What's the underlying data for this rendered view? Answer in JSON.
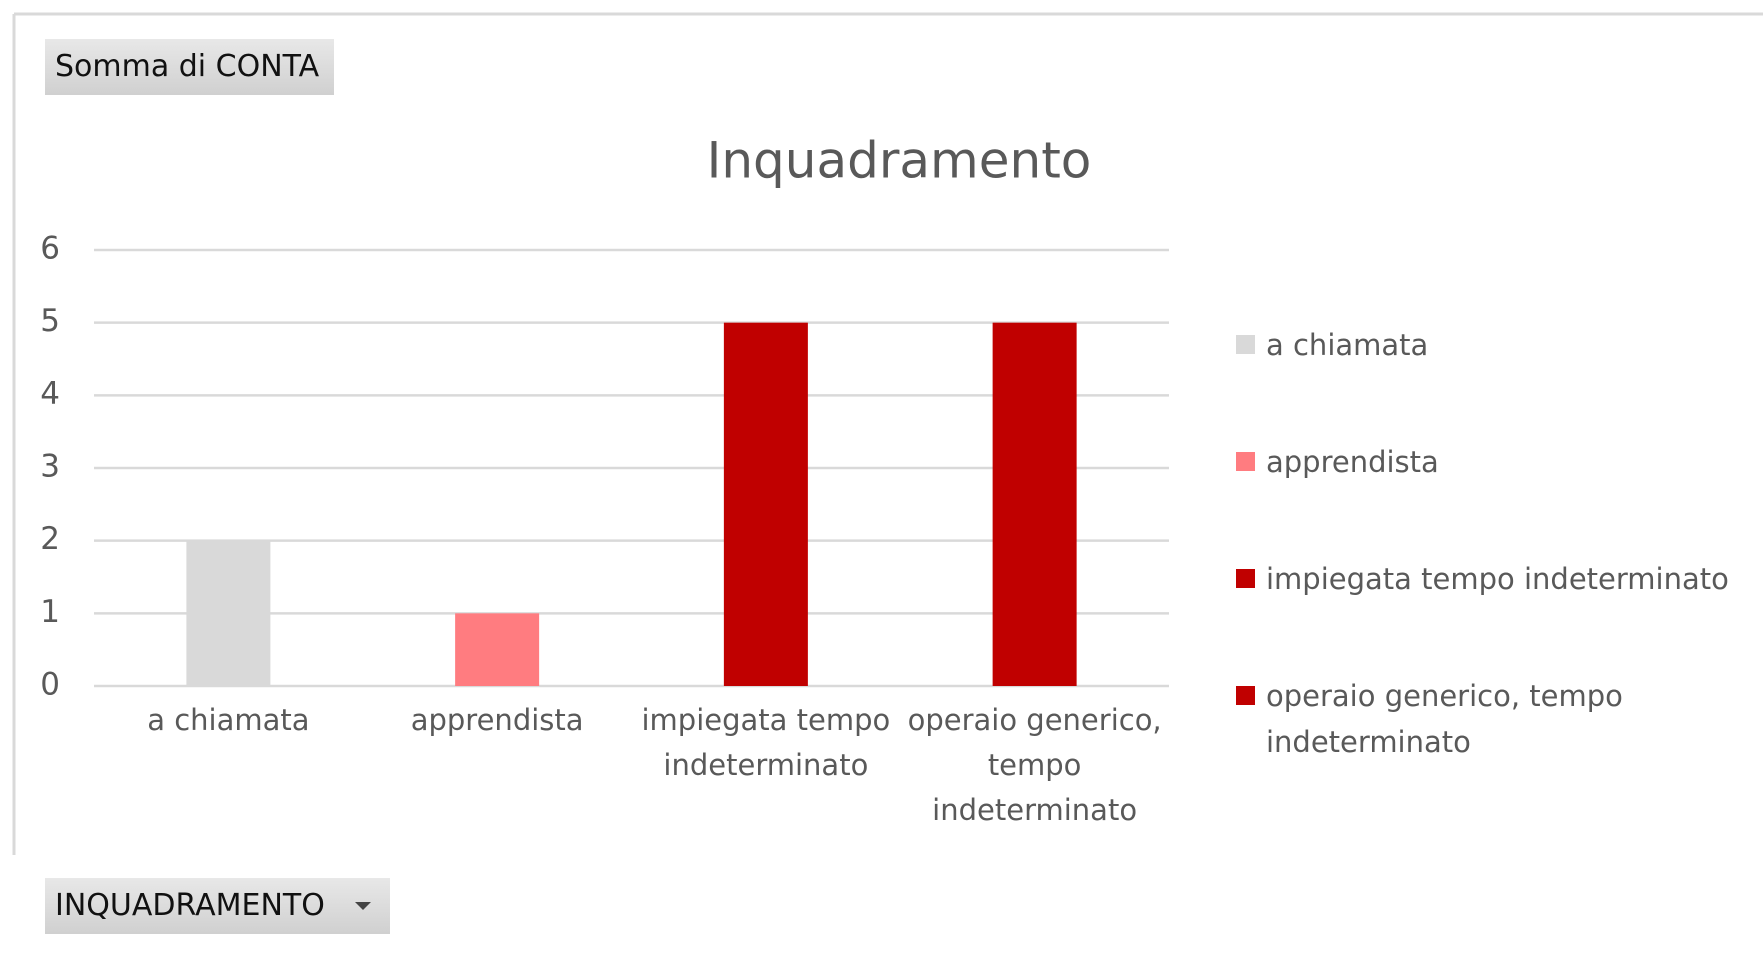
{
  "value_field": "Somma di CONTA",
  "axis_field": "INQUADRAMENTO",
  "chart_data": {
    "type": "bar",
    "title": "Inquadramento",
    "categories": [
      "a chiamata",
      "apprendista",
      "impiegata tempo indeterminato",
      "operaio generico, tempo indeterminato"
    ],
    "values": [
      2,
      1,
      5,
      5
    ],
    "colors": [
      "#d9d9d9",
      "#ff7c80",
      "#c00000",
      "#c00000"
    ],
    "ylim": [
      0,
      6
    ],
    "yticks": [
      0,
      1,
      2,
      3,
      4,
      5,
      6
    ],
    "grid": true,
    "legend": "right"
  }
}
